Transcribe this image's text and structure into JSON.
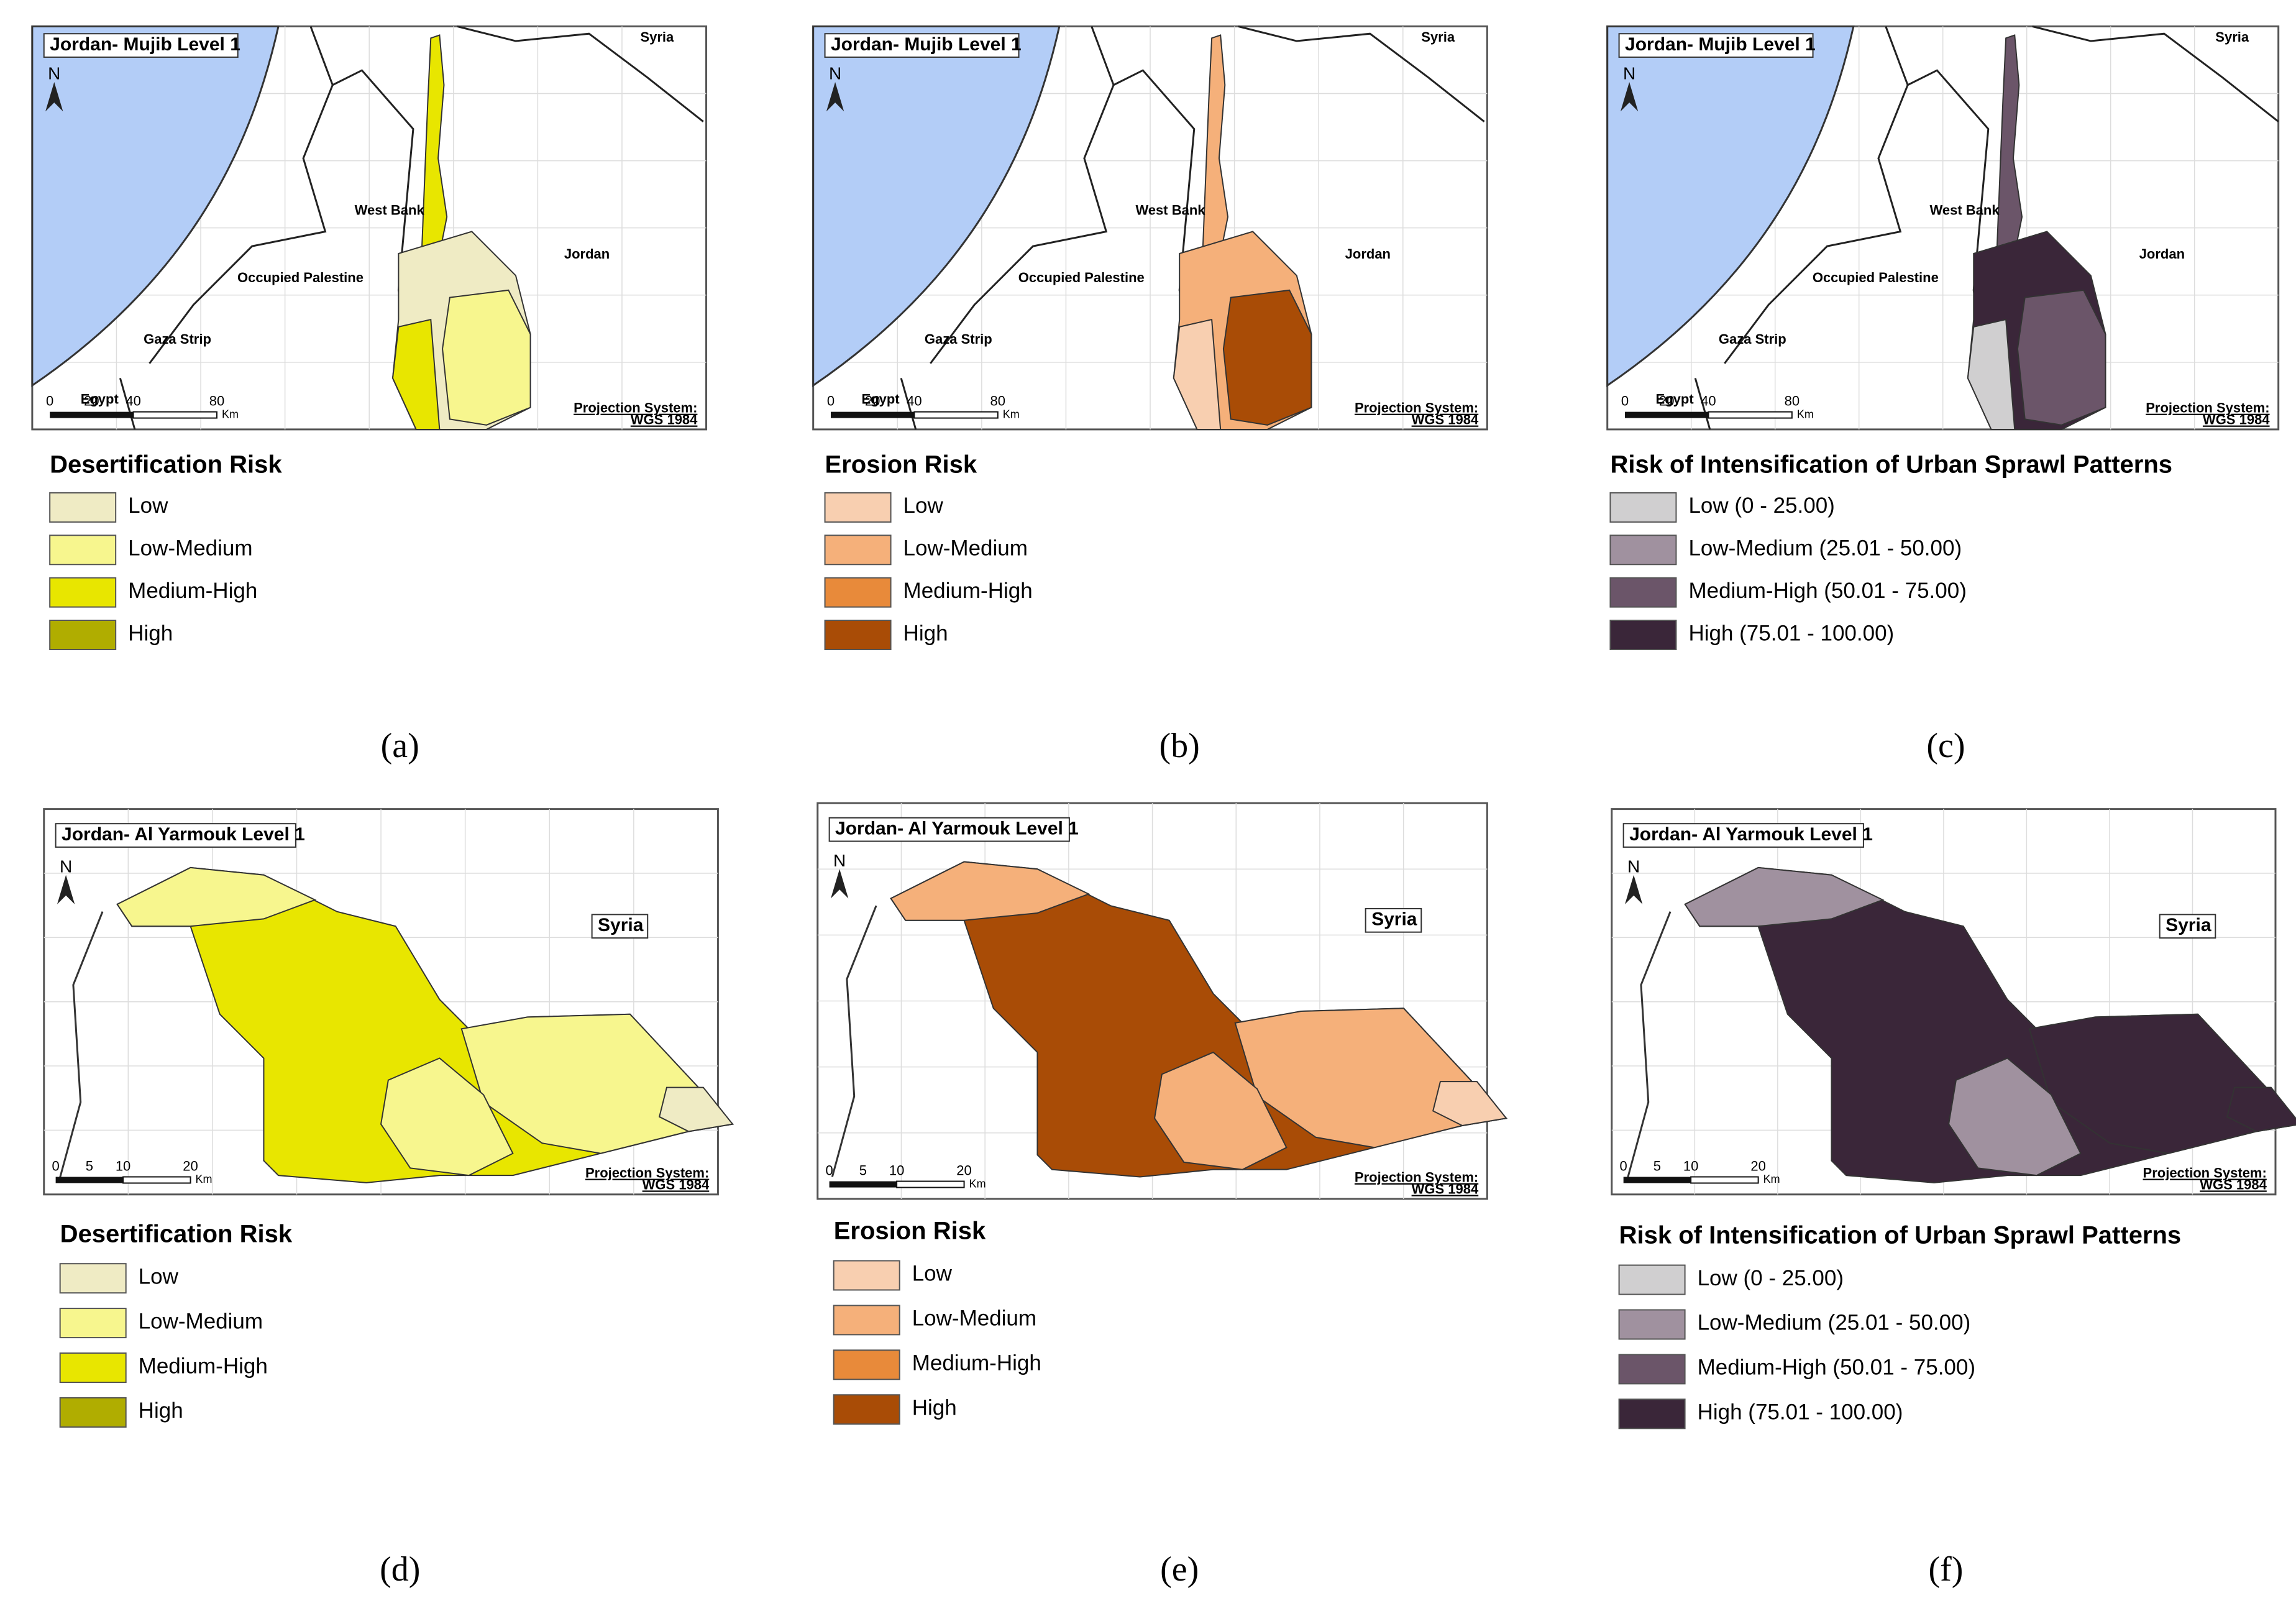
{
  "panels": [
    {
      "caption": "(a)",
      "map": {
        "title": "Jordan- Mujib Level 1",
        "north": "N",
        "places": [
          "Syria",
          "West Bank",
          "Jordan",
          "Occupied Palestine",
          "Gaza Strip",
          "Egypt"
        ],
        "scale": [
          "0",
          "20",
          "40",
          "80"
        ],
        "scale_unit": "Km",
        "projection": [
          "Projection System:",
          "WGS 1984"
        ]
      },
      "legend": {
        "title": "Desertification Risk",
        "items": [
          {
            "label": "Low",
            "color": "#efebc4"
          },
          {
            "label": "Low-Medium",
            "color": "#f7f68e"
          },
          {
            "label": "Medium-High",
            "color": "#e8e600"
          },
          {
            "label": "High",
            "color": "#b0ad00"
          }
        ]
      }
    },
    {
      "caption": "(b)",
      "map": {
        "title": "Jordan- Mujib Level 1",
        "north": "N",
        "places": [
          "Syria",
          "West Bank",
          "Jordan",
          "Occupied Palestine",
          "Gaza Strip",
          "Egypt"
        ],
        "scale": [
          "0",
          "20",
          "40",
          "80"
        ],
        "scale_unit": "Km",
        "projection": [
          "Projection System:",
          "WGS 1984"
        ]
      },
      "legend": {
        "title": "Erosion Risk",
        "items": [
          {
            "label": "Low",
            "color": "#f8cfb0"
          },
          {
            "label": "Low-Medium",
            "color": "#f5b07a"
          },
          {
            "label": "Medium-High",
            "color": "#e88a3a"
          },
          {
            "label": "High",
            "color": "#a94c06"
          }
        ]
      }
    },
    {
      "caption": "(c)",
      "map": {
        "title": "Jordan- Mujib Level 1",
        "north": "N",
        "places": [
          "Syria",
          "West Bank",
          "Jordan",
          "Occupied Palestine",
          "Gaza Strip",
          "Egypt"
        ],
        "scale": [
          "0",
          "20",
          "40",
          "80"
        ],
        "scale_unit": "Km",
        "projection": [
          "Projection System:",
          "WGS 1984"
        ]
      },
      "legend": {
        "title": "Risk of Intensification of Urban Sprawl Patterns",
        "items": [
          {
            "label": "Low (0 - 25.00)",
            "color": "#d0cfd0"
          },
          {
            "label": "Low-Medium (25.01 - 50.00)",
            "color": "#a0919f"
          },
          {
            "label": "Medium-High (50.01 - 75.00)",
            "color": "#6b5569"
          },
          {
            "label": "High (75.01 - 100.00)",
            "color": "#3a2639"
          }
        ]
      }
    },
    {
      "caption": "(d)",
      "map": {
        "title": "Jordan- Al Yarmouk Level 1",
        "north": "N",
        "places": [
          "Syria"
        ],
        "scale": [
          "0",
          "5",
          "10",
          "20"
        ],
        "scale_unit": "Km",
        "projection": [
          "Projection System:",
          "WGS 1984"
        ]
      },
      "legend": {
        "title": "Desertification Risk",
        "items": [
          {
            "label": "Low",
            "color": "#efebc4"
          },
          {
            "label": "Low-Medium",
            "color": "#f7f68e"
          },
          {
            "label": "Medium-High",
            "color": "#e8e600"
          },
          {
            "label": "High",
            "color": "#b0ad00"
          }
        ]
      }
    },
    {
      "caption": "(e)",
      "map": {
        "title": "Jordan- Al Yarmouk Level 1",
        "north": "N",
        "places": [
          "Syria"
        ],
        "scale": [
          "0",
          "5",
          "10",
          "20"
        ],
        "scale_unit": "Km",
        "projection": [
          "Projection System:",
          "WGS 1984"
        ]
      },
      "legend": {
        "title": "Erosion Risk",
        "items": [
          {
            "label": "Low",
            "color": "#f8cfb0"
          },
          {
            "label": "Low-Medium",
            "color": "#f5b07a"
          },
          {
            "label": "Medium-High",
            "color": "#e88a3a"
          },
          {
            "label": "High",
            "color": "#a94c06"
          }
        ]
      }
    },
    {
      "caption": "(f)",
      "map": {
        "title": "Jordan- Al Yarmouk Level 1",
        "north": "N",
        "places": [
          "Syria"
        ],
        "scale": [
          "0",
          "5",
          "10",
          "20"
        ],
        "scale_unit": "Km",
        "projection": [
          "Projection System:",
          "WGS 1984"
        ]
      },
      "legend": {
        "title": "Risk of Intensification of Urban Sprawl Patterns",
        "items": [
          {
            "label": "Low (0 - 25.00)",
            "color": "#d0cfd0"
          },
          {
            "label": "Low-Medium (25.01 - 50.00)",
            "color": "#a0919f"
          },
          {
            "label": "Medium-High (50.01 - 75.00)",
            "color": "#6b5569"
          },
          {
            "label": "High (75.01 - 100.00)",
            "color": "#3a2639"
          }
        ]
      }
    }
  ]
}
